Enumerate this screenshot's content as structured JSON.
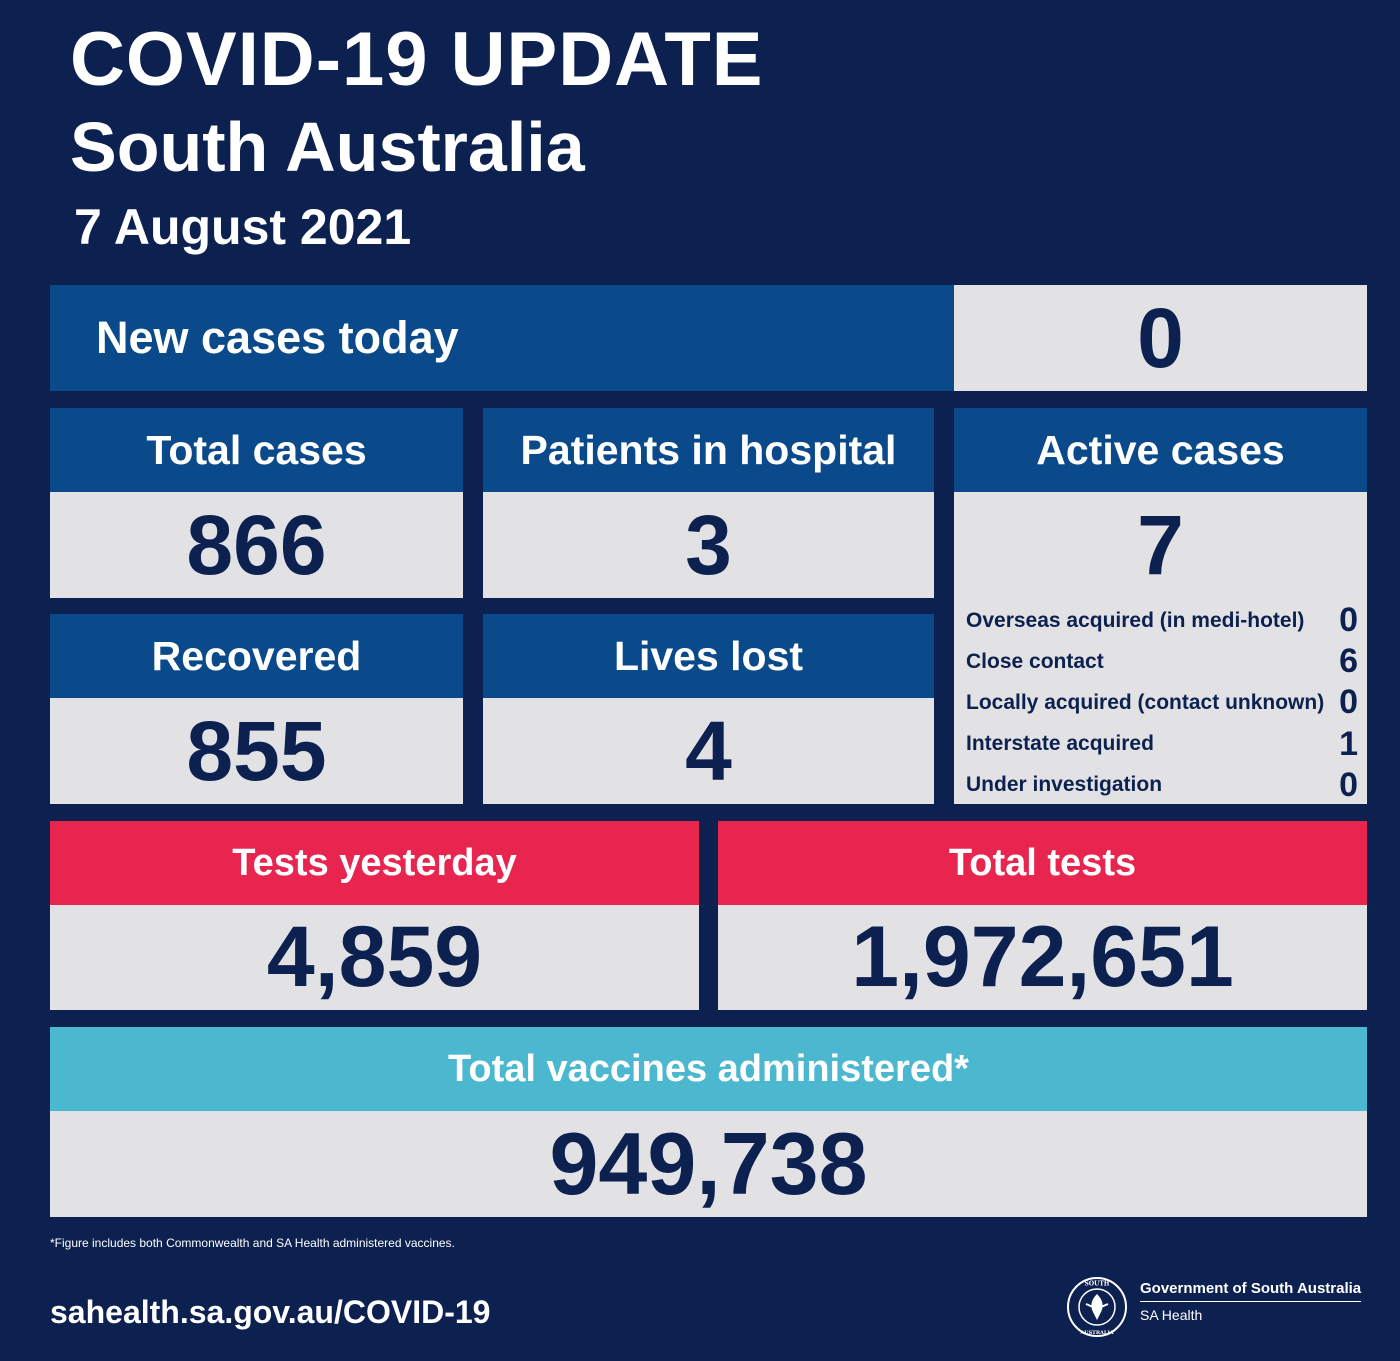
{
  "header": {
    "title": "COVID-19 UPDATE",
    "subtitle": "South Australia",
    "date": "7 August 2021"
  },
  "new_cases": {
    "label": "New cases today",
    "value": "0"
  },
  "stats": {
    "total_cases": {
      "label": "Total cases",
      "value": "866"
    },
    "patients_in_hospital": {
      "label": "Patients in hospital",
      "value": "3"
    },
    "recovered": {
      "label": "Recovered",
      "value": "855"
    },
    "lives_lost": {
      "label": "Lives lost",
      "value": "4"
    },
    "active_cases": {
      "label": "Active cases",
      "value": "7",
      "breakdown": [
        {
          "label": "Overseas acquired (in medi-hotel)",
          "value": "0"
        },
        {
          "label": "Close contact",
          "value": "6"
        },
        {
          "label": "Locally acquired (contact unknown)",
          "value": "0"
        },
        {
          "label": "Interstate acquired",
          "value": "1"
        },
        {
          "label": "Under investigation",
          "value": "0"
        }
      ]
    }
  },
  "tests": {
    "yesterday": {
      "label": "Tests yesterday",
      "value": "4,859"
    },
    "total": {
      "label": "Total tests",
      "value": "1,972,651"
    }
  },
  "vaccines": {
    "label": "Total vaccines administered*",
    "value": "949,738"
  },
  "footnote": "*Figure includes both Commonwealth and SA Health administered vaccines.",
  "footer": {
    "url": "sahealth.sa.gov.au/COVID-19",
    "gov_name": "Government of South Australia",
    "dept": "SA Health",
    "seal_text_top": "SOUTH",
    "seal_text_bottom": "AUSTRALIA"
  },
  "colors": {
    "background": "#0d2150",
    "header_blue": "#0a4a8a",
    "tests_red": "#e8254f",
    "vaccine_teal": "#4cb8cf",
    "value_panel": "#e2e2e4"
  }
}
